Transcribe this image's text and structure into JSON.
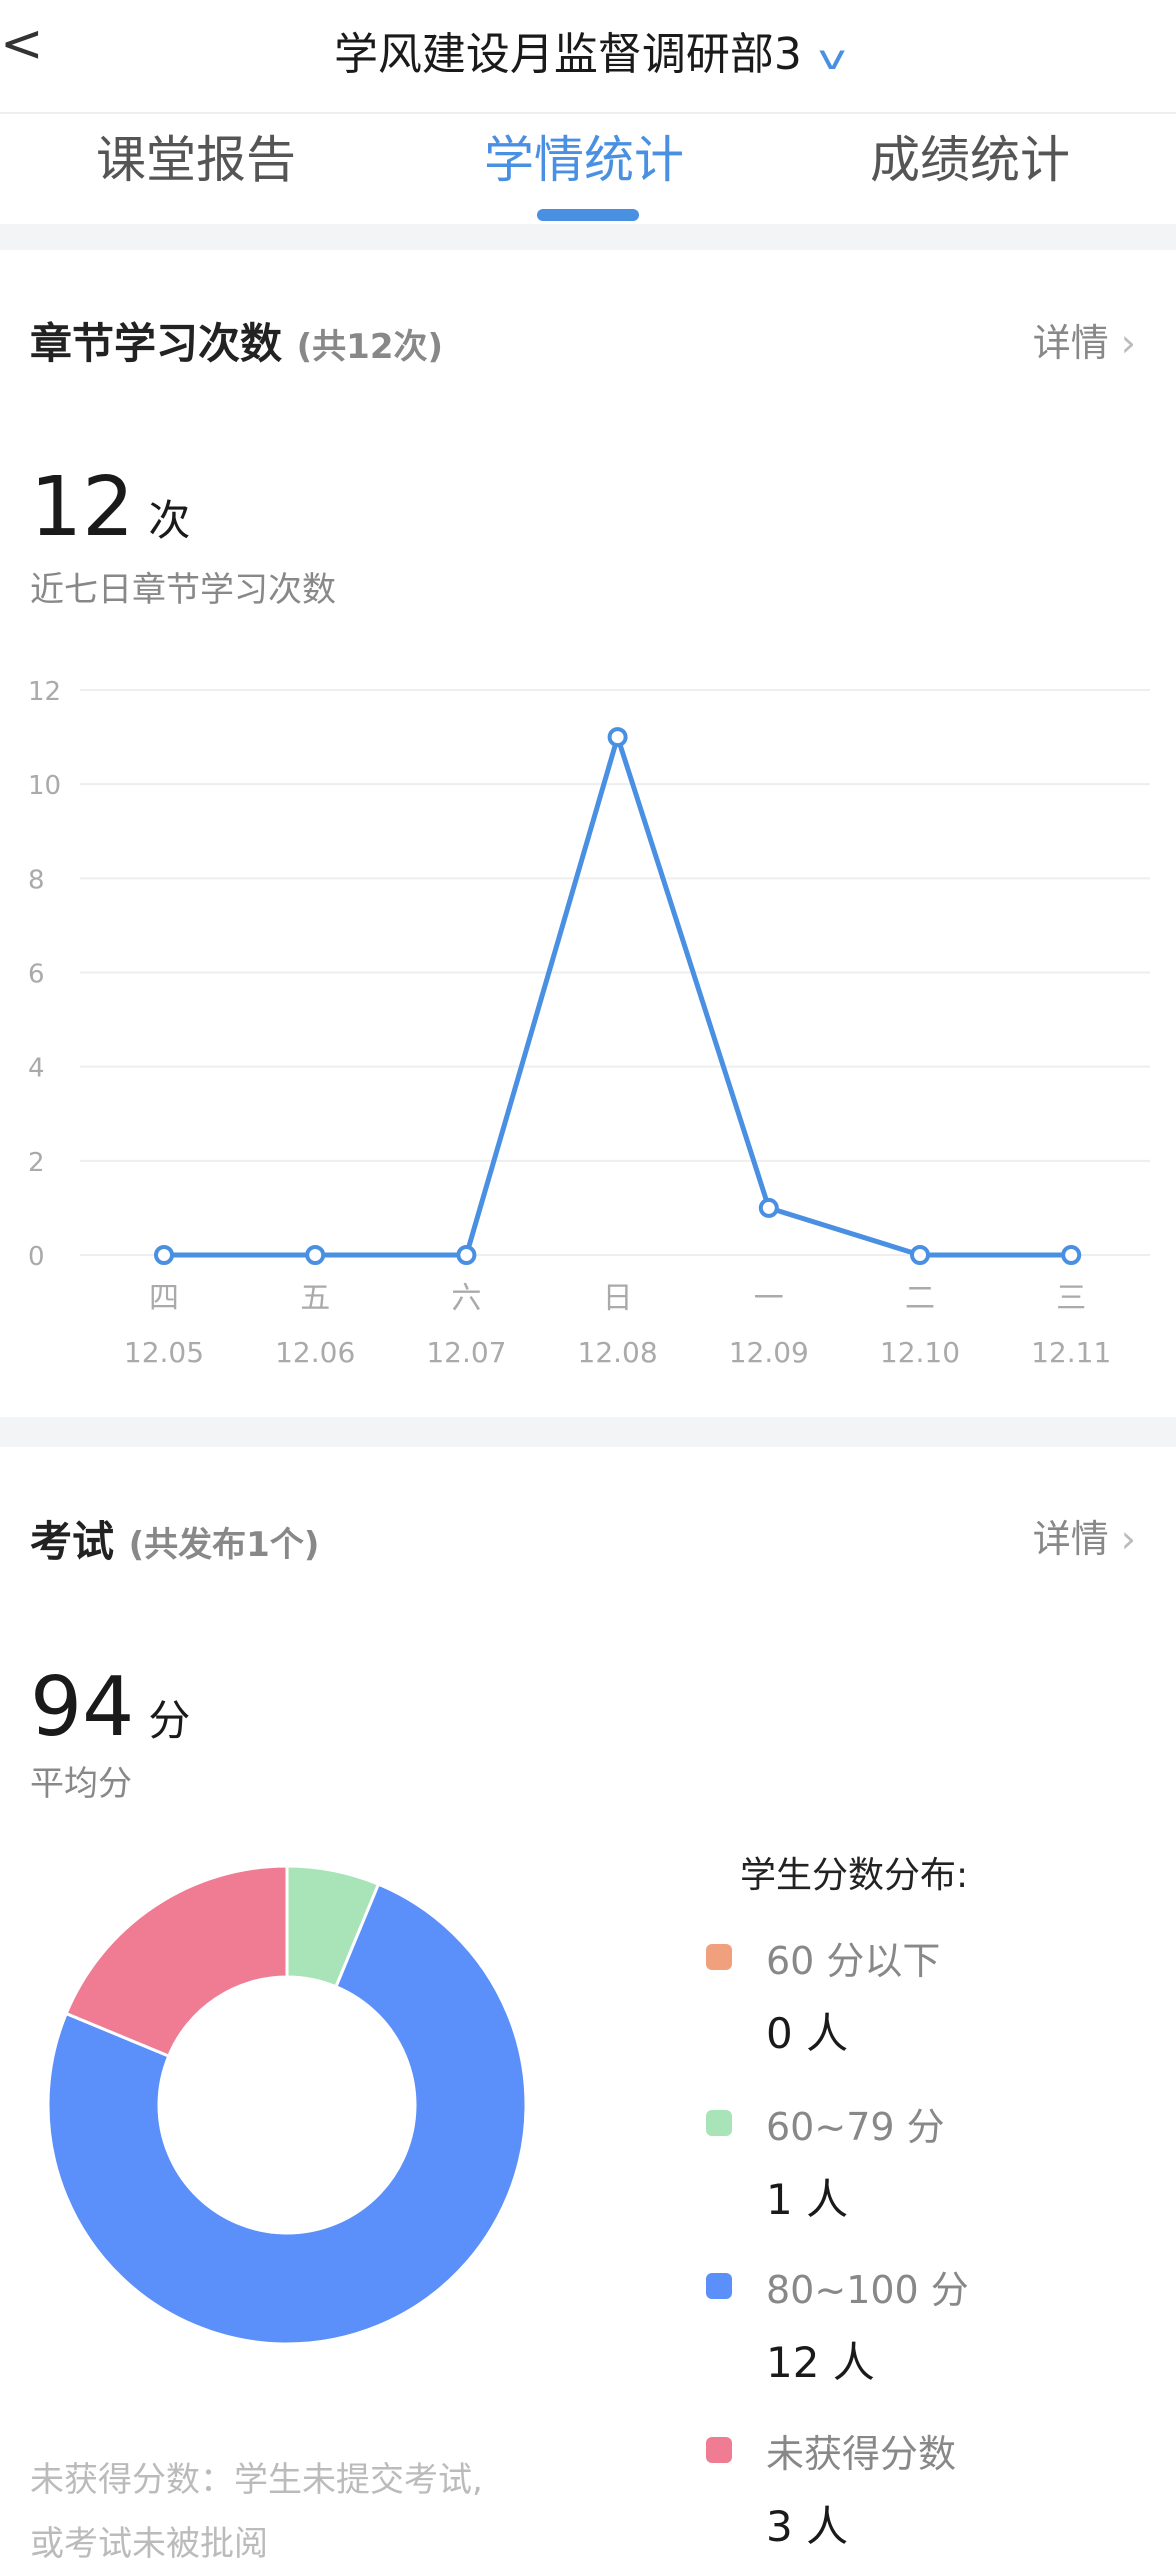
{
  "header": {
    "title": "学风建设月监督调研部3",
    "back_icon": "chevron-left-icon",
    "dropdown_icon": "chevron-down-icon"
  },
  "tabs": [
    {
      "label": "课堂报告",
      "active": false
    },
    {
      "label": "学情统计",
      "active": true
    },
    {
      "label": "成绩统计",
      "active": false
    }
  ],
  "accent_color": "#4a90e2",
  "study": {
    "title": "章节学习次数",
    "subtitle": "(共12次)",
    "detail": "详情",
    "value": "12",
    "unit": "次",
    "desc": "近七日章节学习次数"
  },
  "chart_data": {
    "type": "line",
    "categories": [
      "四",
      "五",
      "六",
      "日",
      "一",
      "二",
      "三"
    ],
    "dates": [
      "12.05",
      "12.06",
      "12.07",
      "12.08",
      "12.09",
      "12.10",
      "12.11"
    ],
    "values": [
      0,
      0,
      0,
      11,
      1,
      0,
      0
    ],
    "yticks": [
      "0",
      "2",
      "4",
      "6",
      "8",
      "10",
      "12"
    ],
    "ylim": [
      0,
      12
    ],
    "grid": true,
    "color": "#4a90e2"
  },
  "exam": {
    "title": "考试",
    "subtitle": "(共发布1个)",
    "detail": "详情",
    "value": "94",
    "unit": "分",
    "desc": "平均分"
  },
  "distribution": {
    "title": "学生分数分布:",
    "items": [
      {
        "label": "60 分以下",
        "count": "0 人",
        "value": 0,
        "color": "#f0a07c"
      },
      {
        "label": "60~79 分",
        "count": "1 人",
        "value": 1,
        "color": "#a8e4b8"
      },
      {
        "label": "80~100 分",
        "count": "12 人",
        "value": 12,
        "color": "#5b8ff9"
      },
      {
        "label": "未获得分数",
        "count": "3 人",
        "value": 3,
        "color": "#f07c93"
      }
    ],
    "note_line1": "未获得分数：学生未提交考试,",
    "note_line2": "或考试未被批阅"
  }
}
